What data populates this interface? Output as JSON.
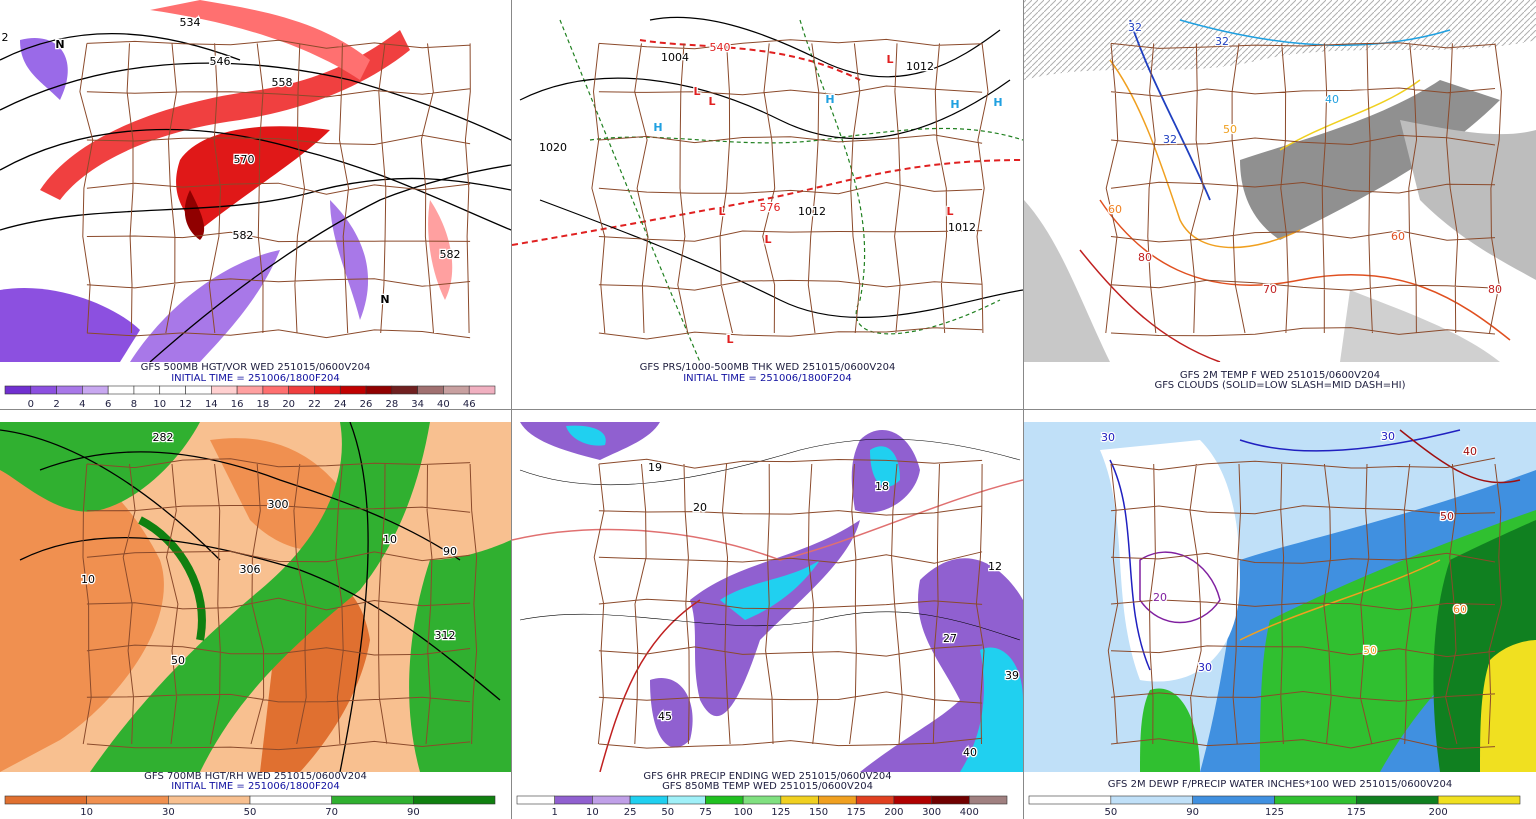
{
  "panels": [
    {
      "caption": [
        "GFS 500MB HGT/VOR WED 251015/0600V204",
        "INITIAL TIME = 251006/1800F204"
      ],
      "colorbar": {
        "colors": [
          "#7030d0",
          "#8c50e0",
          "#a878e8",
          "#c8a8f0",
          "#ffffff",
          "#ffffff",
          "#ffffff",
          "#ffffff",
          "#ffd0d0",
          "#ffa0a0",
          "#ff7070",
          "#f04040",
          "#e01818",
          "#c00000",
          "#900000",
          "#702020",
          "#a07070",
          "#c8a0a0",
          "#f0b0c0"
        ],
        "ticks": [
          0,
          2,
          4,
          6,
          8,
          10,
          12,
          14,
          16,
          18,
          20,
          22,
          24,
          26,
          28,
          34,
          40,
          46
        ]
      },
      "map_labels": [
        "534",
        "546",
        "558",
        "570",
        "582",
        "582",
        "N",
        "N",
        "2"
      ]
    },
    {
      "caption": [
        "GFS PRS/1000-500MB THK WED 251015/0600V204",
        "INITIAL TIME = 251006/1800F204"
      ],
      "map_labels": [
        "1004",
        "1012",
        "1020",
        "1012",
        "1012",
        "L",
        "L",
        "L",
        "H",
        "H",
        "H",
        "H",
        "L",
        "L",
        "L",
        "L",
        "540",
        "576"
      ]
    },
    {
      "caption": [
        "GFS 2M TEMP F WED 251015/0600V204",
        "GFS CLOUDS (SOLID=LOW SLASH=MID DASH=HI)"
      ],
      "map_labels": [
        "32",
        "32",
        "40",
        "32",
        "50",
        "60",
        "70",
        "80",
        "80",
        "60"
      ]
    },
    {
      "caption": [
        "GFS 700MB HGT/RH WED 251015/0600V204",
        "INITIAL TIME = 251006/1800F204"
      ],
      "colorbar": {
        "colors": [
          "#e07030",
          "#f09050",
          "#f8c090",
          "#ffffff",
          "#30b030",
          "#108010"
        ],
        "ticks": [
          10,
          30,
          50,
          70,
          90
        ]
      },
      "map_labels": [
        "282",
        "300",
        "306",
        "312",
        "10",
        "50",
        "90",
        "10"
      ]
    },
    {
      "caption": [
        "GFS 6HR PRECIP ENDING WED 251015/0600V204",
        "GFS 850MB TEMP WED 251015/0600V204"
      ],
      "colorbar": {
        "colors": [
          "#ffffff",
          "#9060d0",
          "#c0a0e8",
          "#20d0f0",
          "#a0f0f8",
          "#20c020",
          "#80e080",
          "#f0d020",
          "#f0a020",
          "#e04020",
          "#b00000",
          "#700000",
          "#a08080"
        ],
        "ticks": [
          1,
          10,
          25,
          50,
          75,
          100,
          125,
          150,
          175,
          200,
          300,
          400
        ]
      },
      "map_labels": [
        "19",
        "20",
        "18",
        "12",
        "27",
        "39",
        "40",
        "45"
      ]
    },
    {
      "caption": [
        "GFS 2M DEWP F/PRECIP WATER INCHES*100 WED 251015/0600V204"
      ],
      "colorbar": {
        "colors": [
          "#ffffff",
          "#c0e0f8",
          "#4090e0",
          "#30c030",
          "#108020",
          "#f0e020"
        ],
        "ticks": [
          50,
          90,
          125,
          175,
          200
        ]
      },
      "map_labels": [
        "30",
        "30",
        "40",
        "20",
        "30",
        "50",
        "50",
        "60"
      ]
    }
  ]
}
